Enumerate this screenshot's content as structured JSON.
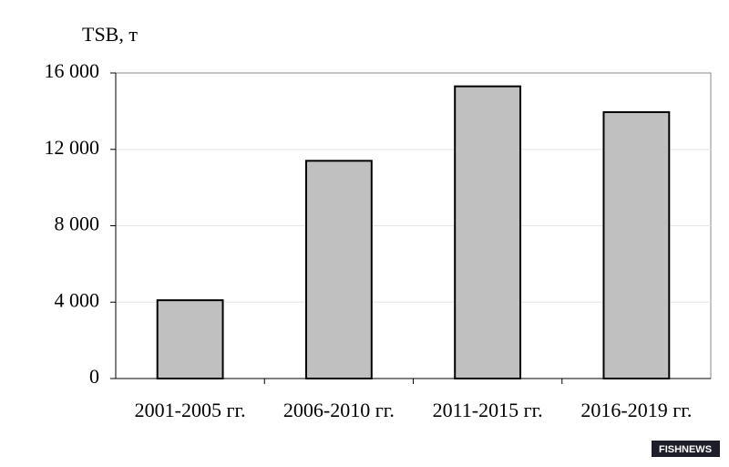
{
  "chart_data": {
    "type": "bar",
    "y_label": "TSB, т",
    "categories": [
      "2001-2005 гг.",
      "2006-2010 гг.",
      "2011-2015 гг.",
      "2016-2019 гг."
    ],
    "values": [
      4100,
      11400,
      15300,
      13950
    ],
    "color": "#c0c0c0",
    "ylim": [
      0,
      16000
    ],
    "yticks": [
      0,
      {
        "value": 4000,
        "label": "4 000"
      },
      {
        "value": 8000,
        "label": "8 000"
      },
      {
        "value": 12000,
        "label": "12 000"
      },
      {
        "value": 16000,
        "label": "16 000"
      }
    ],
    "grid": true
  },
  "watermark": "FISHNEWS"
}
